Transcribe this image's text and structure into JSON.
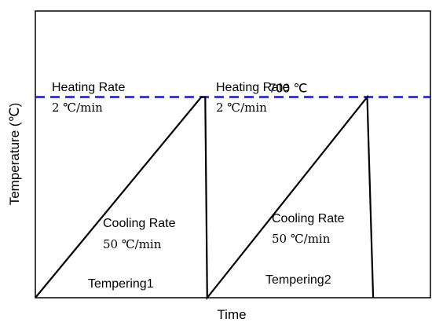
{
  "chart_data": {
    "type": "line",
    "title": "",
    "xlabel": "Time",
    "ylabel": "Temperature (℃)",
    "xlim": [
      0,
      100
    ],
    "ylim": [
      0,
      1000
    ],
    "grid": false,
    "colors": {
      "series": "#000000",
      "reference": "#1515c8",
      "frame": "#000000"
    },
    "reference_line": {
      "label": "700 ℃",
      "y": 700,
      "style": "dashed"
    },
    "series": [
      {
        "x": [
          0,
          42,
          43,
          43.5,
          84,
          85.5
        ],
        "y": [
          0,
          700,
          700,
          0,
          700,
          0
        ]
      }
    ],
    "annotations": [
      {
        "title": "Heating Rate",
        "value": "2 ℃/min"
      },
      {
        "title": "Heating Rate",
        "value": "2 ℃/min"
      },
      {
        "title": "Cooling Rate",
        "value": "50 ℃/min"
      },
      {
        "title": "Cooling Rate",
        "value": "50 ℃/min"
      }
    ],
    "stages": [
      "Tempering1",
      "Tempering2"
    ]
  }
}
